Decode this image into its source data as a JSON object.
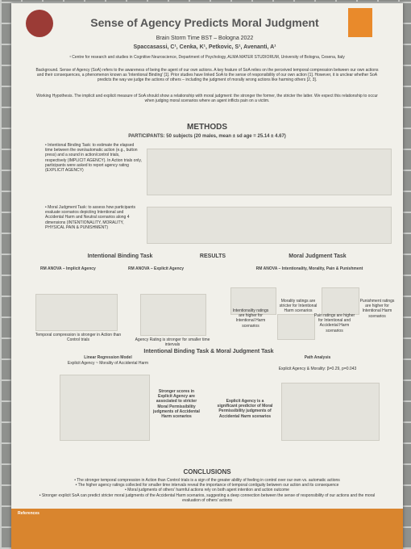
{
  "header": {
    "title": "Sense of Agency Predicts Moral Judgment",
    "event": "Brain Storm Time BST – Bologna 2022",
    "authors": "Spaccasassi, C¹, Cenka, K¹, Petkovic, S¹, Avenanti, A¹",
    "affiliation": "¹ Centre for research and studies in Cognitive Neuroscience, Department of Psychology, ALMA MATER STUDIORUM, University of Bologna, Cesena, Italy"
  },
  "intro": {
    "background": "Background. Sense of Agency (SoA) refers to the awareness of being the agent of our own actions. A key feature of SoA relies on the perceived temporal compression between our own actions and their consequences, a phenomenon known as 'Intentional Binding' [1]. Prior studies have linked SoA to the sense of responsibility of our own action [1]. However, it is unclear whether SoA predicts the way we judge the actions of others – including the judgment of morally wrong actions like harming others [2, 3].",
    "hypothesis": "Working Hypothesis. The implicit and explicit measure of SoA should show a relationship with moral judgment: the stronger the former, the stricter the latter. We expect this relationship to occur when judging moral scenarios where an agent inflicts pain on a victim."
  },
  "methods": {
    "heading": "METHODS",
    "participants": "PARTICIPANTS: 50 subjects (20 males, mean ± sd age = 25.14 ± 4.67)",
    "binding_task": "• Intentional Binding Task: to estimate the elapsed time between the own/automatic action (e.g., button press) and a sound in action/control trials, respectively (IMPLICIT AGENCY). In Action trials only, participants were asked to report agency rating (EXPLICIT AGENCY)",
    "moral_task": "• Moral Judgment Task: to assess how participants evaluate scenarios depicting Intentional and Accidental Harm and Neutral scenarios along 4 dimensions (INTENTIONALITY, MORALITY, PHYSICAL PAIN & PUNISHMENT)"
  },
  "results": {
    "binding_heading": "Intentional Binding Task",
    "heading": "RESULTS",
    "moral_heading": "Moral Judgment Task",
    "implicit": {
      "heading": "RM ANOVA – Implicit Agency",
      "caption": "Temporal compression is stronger in Action than Control trials"
    },
    "explicit": {
      "heading": "RM ANOVA – Explicit Agency",
      "caption": "Agency Rating is stronger for smaller time intervals"
    },
    "moral": {
      "heading": "RM ANOVA – Intentionality, Morality, Pain & Punishment",
      "notes": [
        "Morality ratings are stricter for Intentional Harm scenarios",
        "Punishment ratings are higher for Intentional Harm scenarios",
        "Intentionality ratings are higher for Intentional Harm scenarios",
        "Pain ratings are higher for Intentional and Accidental Harm scenarios"
      ]
    },
    "combined_heading": "Intentional Binding Task & Moral Judgment Task",
    "regression": {
      "heading": "Linear Regression Model",
      "model": "Explicit Agency ~ Morality of Accidental Harm",
      "caption": "Stronger scores in Explicit Agency are associated to stricter Moral Permissibility judgments of Accidental Harm scenarios"
    },
    "path": {
      "heading": "Path Analysis",
      "result": "Explicit Agency & Morality: β=0.29, p=0.043",
      "caption": "Explicit Agency is a significant predictor of Moral Permissibility judgments of Accidental Harm scenarios"
    }
  },
  "conclusions": {
    "heading": "CONCLUSIONS",
    "items": [
      "• The stronger temporal compression in Action than Control trials is a sign of the greater ability of feeling in control over our own vs. automatic actions",
      "• The higher agency ratings collected for smaller time intervals reveal the importance of temporal contiguity between our action and its consequence",
      "• Moral judgments of others' harmful actions rely on both agent intention and action outcome",
      "• Stronger explicit SoA can predict stricter moral judgments of the Accidental Harm scenarios, suggesting a deep connection between the sense of responsibility of our actions and the moral evaluation of others' actions"
    ]
  },
  "references": {
    "heading": "References"
  }
}
